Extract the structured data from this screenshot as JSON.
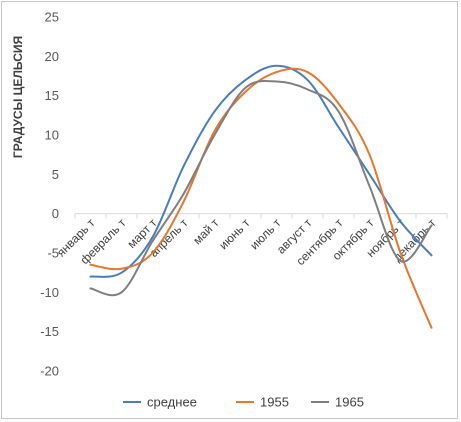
{
  "chart_data": {
    "type": "line",
    "ylabel": "ГРАДУСЫ ЦЕЛЬСИЯ",
    "xlabel": "",
    "ylim": [
      -20,
      25
    ],
    "y_ticks": [
      25,
      20,
      15,
      10,
      5,
      0,
      -5,
      -10,
      -15,
      -20
    ],
    "categories": [
      "январь т",
      "февраль т",
      "март т",
      "апрель т",
      "май т",
      "июнь т",
      "июль т",
      "август т",
      "сентябрь т",
      "октябрь т",
      "ноябрь т",
      "декабрь т"
    ],
    "grid": false,
    "legend_position": "bottom",
    "series": [
      {
        "name": "среднее",
        "color": "#4a7ebb",
        "values": [
          -8,
          -7.5,
          -3,
          6,
          13,
          17,
          18.8,
          17,
          11,
          5,
          -1,
          -5.3
        ]
      },
      {
        "name": "1955",
        "color": "#e8762c",
        "values": [
          -6.5,
          -7,
          -5,
          1.5,
          10.5,
          15.5,
          18,
          18,
          14,
          7.5,
          -5,
          -14.5
        ]
      },
      {
        "name": "1965",
        "color": "#7f7f7f",
        "values": [
          -9.5,
          -10,
          -3.5,
          2.5,
          10,
          16,
          16.8,
          15.8,
          13,
          3.5,
          -6,
          -1.5
        ]
      }
    ]
  }
}
